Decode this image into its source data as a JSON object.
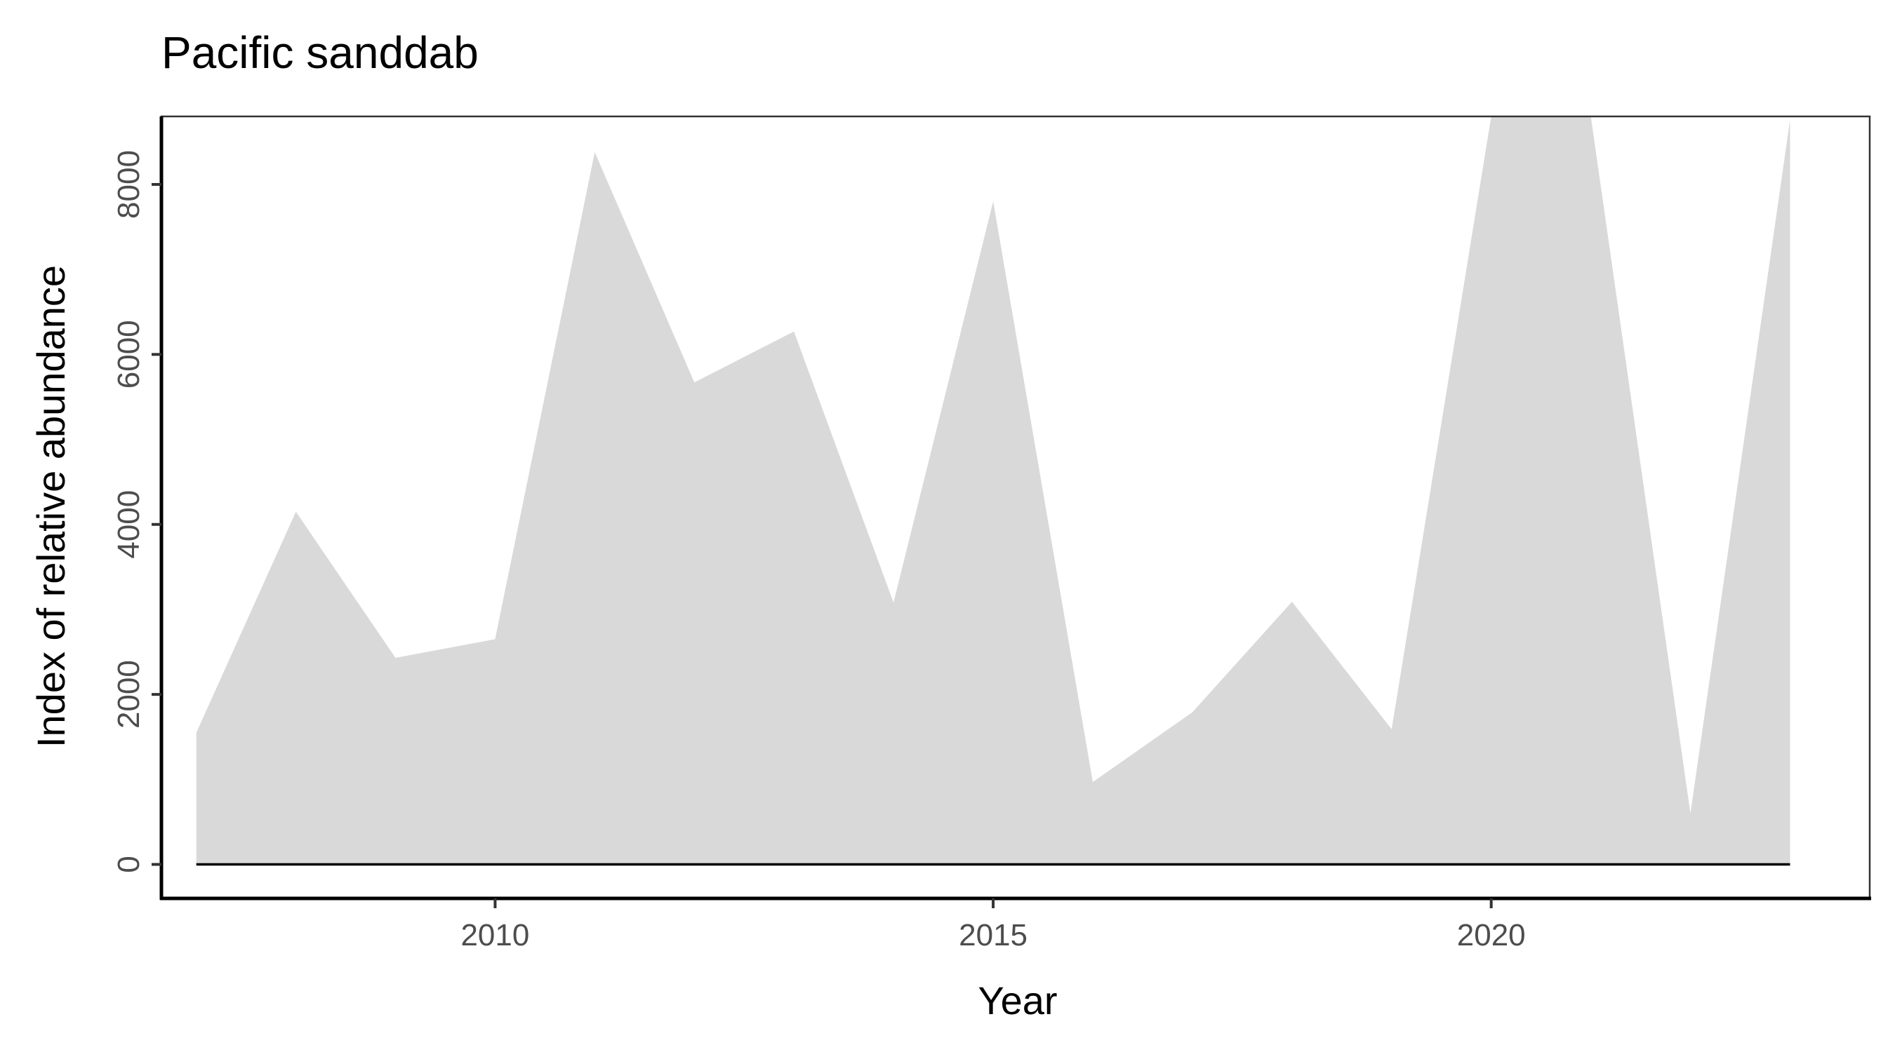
{
  "chart_data": {
    "type": "area",
    "title": "Pacific sanddab",
    "xlabel": "Year",
    "ylabel": "Index of relative abundance",
    "x": [
      2007,
      2008,
      2009,
      2010,
      2011,
      2012,
      2013,
      2014,
      2015,
      2016,
      2017,
      2018,
      2019,
      2020,
      2021,
      2022,
      2023
    ],
    "series": [
      {
        "upper": [
          1550,
          4150,
          2430,
          2650,
          8380,
          5670,
          6270,
          3080,
          7800,
          970,
          1790,
          3090,
          1590,
          8800,
          8800,
          600,
          8760
        ],
        "lower": [
          0,
          0,
          0,
          0,
          0,
          0,
          0,
          0,
          0,
          0,
          0,
          0,
          0,
          0,
          0,
          0,
          0
        ],
        "line": [
          0,
          0,
          0,
          0,
          0,
          0,
          0,
          0,
          0,
          0,
          0,
          0,
          0,
          0,
          0,
          0,
          0
        ]
      }
    ],
    "xlim": [
      2006.65,
      2023.8
    ],
    "ylim": [
      -400,
      8800
    ],
    "xticks": [
      2010,
      2015,
      2020
    ],
    "yticks": [
      0,
      2000,
      4000,
      6000,
      8000
    ],
    "xtick_labels": [
      "2010",
      "2015",
      "2020"
    ],
    "ytick_labels": [
      "0",
      "2000",
      "4000",
      "6000",
      "8000"
    ],
    "grid": false,
    "colors": {
      "ribbon": "#d9d9d9",
      "line": "#000000",
      "axis": "#000000",
      "panel_border": "#333333"
    }
  }
}
